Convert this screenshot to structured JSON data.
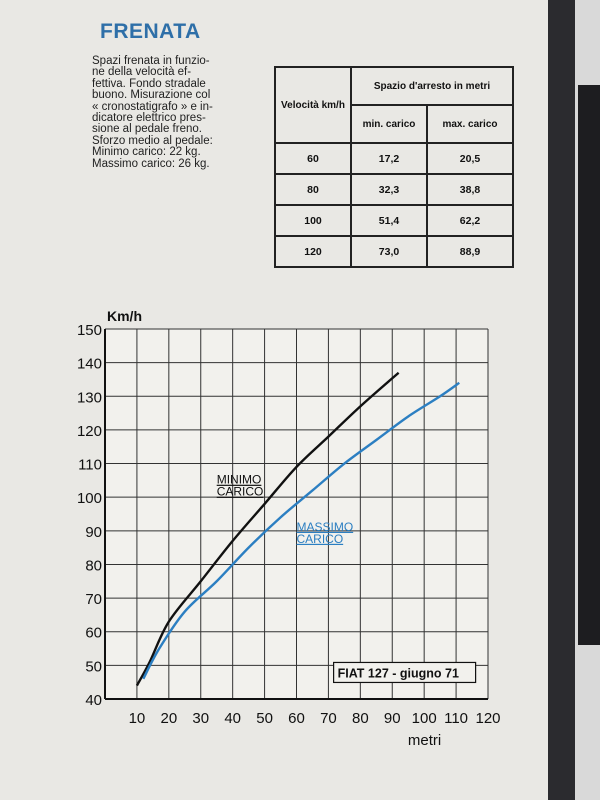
{
  "heading": "FRENATA",
  "description_lines": [
    "Spazi frenata in funzio-",
    "ne della velocità ef-",
    "fettiva. Fondo stradale",
    "buono. Misurazione col",
    "« cronostatigrafo » e in-",
    "dicatore elettrico pres-",
    "sione al pedale freno.",
    "Sforzo medio al pedale:",
    "Minimo carico:   22 kg.",
    "Massimo carico:  26 kg."
  ],
  "table": {
    "col_speed": "Velocità km/h",
    "col_group": "Spazio d'arresto in metri",
    "col_min": "min. carico",
    "col_max": "max. carico",
    "rows": [
      {
        "speed": "60",
        "min": "17,2",
        "max": "20,5"
      },
      {
        "speed": "80",
        "min": "32,3",
        "max": "38,8"
      },
      {
        "speed": "100",
        "min": "51,4",
        "max": "62,2"
      },
      {
        "speed": "120",
        "min": "73,0",
        "max": "88,9"
      }
    ]
  },
  "chart_data": {
    "type": "line",
    "ylabel": "Km/h",
    "xlabel": "metri",
    "xlim": [
      0,
      120
    ],
    "ylim": [
      40,
      150
    ],
    "x_ticks": [
      "10",
      "20",
      "30",
      "40",
      "50",
      "60",
      "70",
      "80",
      "90",
      "100",
      "110",
      "120"
    ],
    "y_ticks": [
      "40",
      "50",
      "60",
      "70",
      "80",
      "90",
      "100",
      "110",
      "120",
      "130",
      "140",
      "150"
    ],
    "grid": true,
    "series": [
      {
        "name": "MINIMO CARICO",
        "color": "#111111",
        "points": [
          [
            10,
            44
          ],
          [
            14,
            51
          ],
          [
            20,
            63
          ],
          [
            30,
            75
          ],
          [
            40,
            87
          ],
          [
            50,
            98
          ],
          [
            60,
            109
          ],
          [
            70,
            118
          ],
          [
            80,
            127
          ],
          [
            92,
            137
          ]
        ]
      },
      {
        "name": "MASSIMO CARICO",
        "color": "#2c7fc2",
        "points": [
          [
            12,
            46
          ],
          [
            17,
            55
          ],
          [
            25,
            66
          ],
          [
            35,
            75
          ],
          [
            45,
            85
          ],
          [
            55,
            94
          ],
          [
            65,
            102
          ],
          [
            75,
            110
          ],
          [
            85,
            117
          ],
          [
            95,
            124
          ],
          [
            105,
            130
          ],
          [
            111,
            134
          ]
        ]
      }
    ],
    "annotation": "FIAT 127 - giugno 71"
  }
}
